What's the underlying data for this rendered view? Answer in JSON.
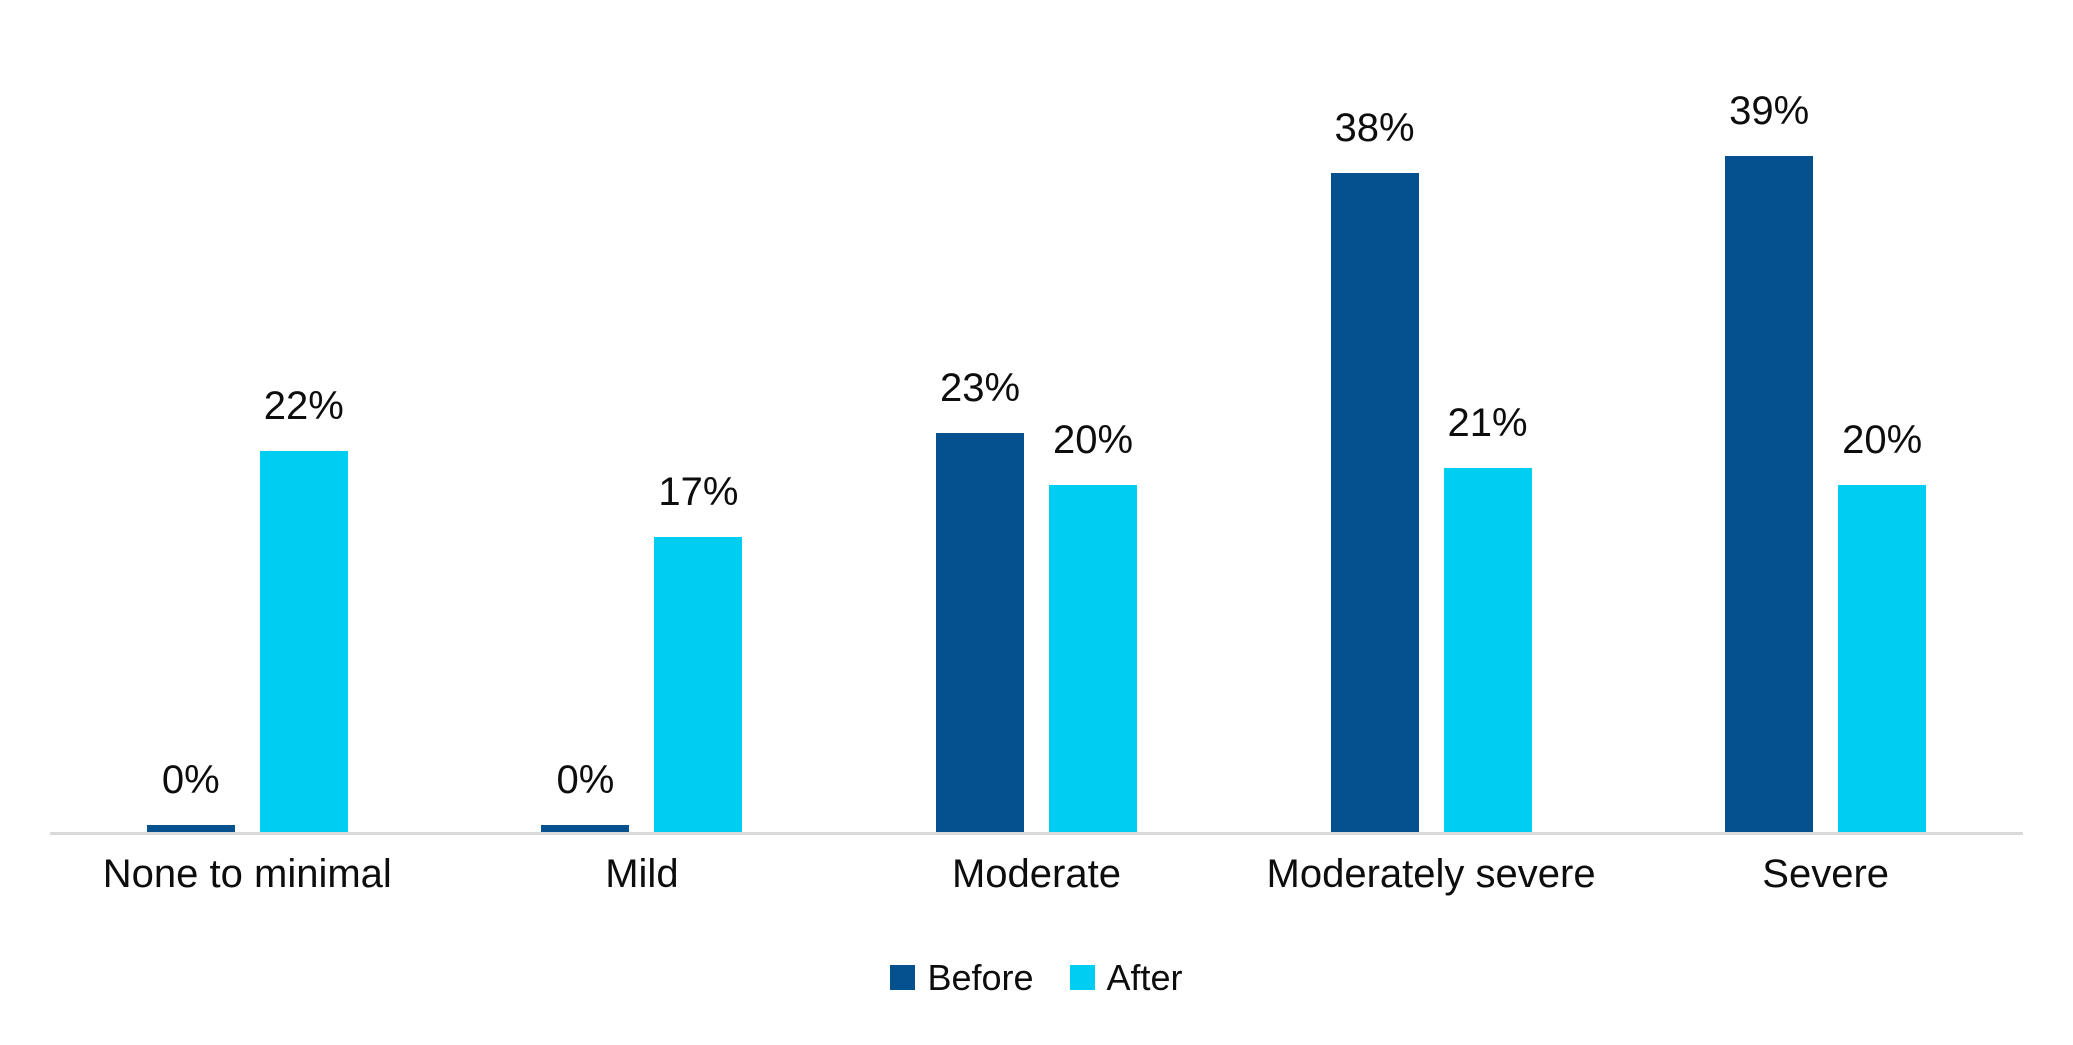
{
  "chart_data": {
    "type": "bar",
    "title": "",
    "xlabel": "",
    "ylabel": "",
    "categories": [
      "None to minimal",
      "Mild",
      "Moderate",
      "Moderately severe",
      "Severe"
    ],
    "series": [
      {
        "name": "Before",
        "color": "#05508E",
        "values": [
          0,
          0,
          23,
          38,
          39
        ]
      },
      {
        "name": "After",
        "color": "#00CDF2",
        "values": [
          22,
          17,
          20,
          21,
          20
        ]
      }
    ],
    "data_labels": {
      "before": [
        "0%",
        "0%",
        "23%",
        "38%",
        "39%"
      ],
      "after": [
        "22%",
        "17%",
        "20%",
        "21%",
        "20%"
      ]
    },
    "value_label_format": "{v}%",
    "ylim": [
      0,
      48
    ],
    "grid": false,
    "y_axis_visible": false,
    "axis_line_color": "#D9D9D9",
    "text_color": "#0d0d0d",
    "background_color": "#ffffff",
    "legend_position": "bottom"
  }
}
